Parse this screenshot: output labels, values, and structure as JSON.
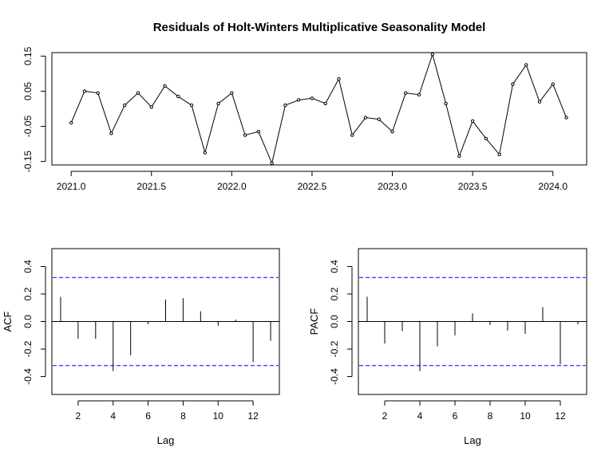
{
  "colors": {
    "line": "#000000",
    "ci": "#0000ff",
    "background": "#ffffff"
  },
  "chart_data": [
    {
      "type": "line",
      "title": "Residuals of Holt-Winters Multiplicative Seasonality Model",
      "xlabel": "",
      "ylabel": "",
      "markers": "open-circle",
      "grid": false,
      "xlim": [
        2020.88,
        2024.21
      ],
      "ylim": [
        -0.16,
        0.16
      ],
      "x_ticks": [
        2021.0,
        2021.5,
        2022.0,
        2022.5,
        2023.0,
        2023.5,
        2024.0
      ],
      "x_tick_labels": [
        "2021.0",
        "2021.5",
        "2022.0",
        "2022.5",
        "2023.0",
        "2023.5",
        "2024.0"
      ],
      "y_ticks": [
        -0.15,
        -0.05,
        0.05,
        0.15
      ],
      "y_tick_labels": [
        "-0.15",
        "-0.05",
        "0.05",
        "0.15"
      ],
      "series": [
        {
          "x_start": 2021.0,
          "x_step": 0.083333,
          "values": [
            -0.04,
            0.05,
            0.045,
            -0.07,
            0.01,
            0.045,
            0.005,
            0.065,
            0.035,
            0.01,
            -0.125,
            0.015,
            0.045,
            -0.075,
            -0.065,
            -0.155,
            0.01,
            0.025,
            0.03,
            0.015,
            0.085,
            -0.075,
            -0.025,
            -0.03,
            -0.065,
            0.045,
            0.04,
            0.155,
            0.015,
            -0.135,
            -0.035,
            -0.085,
            -0.13,
            0.07,
            0.125,
            0.02,
            0.07,
            -0.025
          ]
        }
      ]
    },
    {
      "type": "bar",
      "style": "spikes",
      "xlabel": "Lag",
      "ylabel": "ACF",
      "xlim": [
        0.5,
        13.5
      ],
      "ylim": [
        -0.53,
        0.53
      ],
      "x_ticks": [
        2,
        4,
        6,
        8,
        10,
        12
      ],
      "x_tick_labels": [
        "2",
        "4",
        "6",
        "8",
        "10",
        "12"
      ],
      "y_ticks": [
        -0.4,
        -0.2,
        0.0,
        0.2,
        0.4
      ],
      "y_tick_labels": [
        "-0.4",
        "-0.2",
        "0.0",
        "0.2",
        "0.4"
      ],
      "confidence_band": 0.32,
      "lags": [
        1,
        2,
        3,
        4,
        5,
        6,
        7,
        8,
        9,
        10,
        11,
        12,
        13
      ],
      "values": [
        0.18,
        -0.125,
        -0.125,
        -0.36,
        -0.245,
        -0.02,
        0.16,
        0.17,
        0.075,
        -0.03,
        0.015,
        -0.295,
        -0.14
      ]
    },
    {
      "type": "bar",
      "style": "spikes",
      "xlabel": "Lag",
      "ylabel": "PACF",
      "xlim": [
        0.5,
        13.5
      ],
      "ylim": [
        -0.53,
        0.53
      ],
      "x_ticks": [
        2,
        4,
        6,
        8,
        10,
        12
      ],
      "x_tick_labels": [
        "2",
        "4",
        "6",
        "8",
        "10",
        "12"
      ],
      "y_ticks": [
        -0.4,
        -0.2,
        0.0,
        0.2,
        0.4
      ],
      "y_tick_labels": [
        "-0.4",
        "-0.2",
        "0.0",
        "0.2",
        "0.4"
      ],
      "confidence_band": 0.32,
      "lags": [
        1,
        2,
        3,
        4,
        5,
        6,
        7,
        8,
        9,
        10,
        11,
        12,
        13
      ],
      "values": [
        0.18,
        -0.16,
        -0.07,
        -0.36,
        -0.18,
        -0.1,
        0.06,
        -0.025,
        -0.065,
        -0.09,
        0.105,
        -0.31,
        -0.02
      ]
    }
  ]
}
